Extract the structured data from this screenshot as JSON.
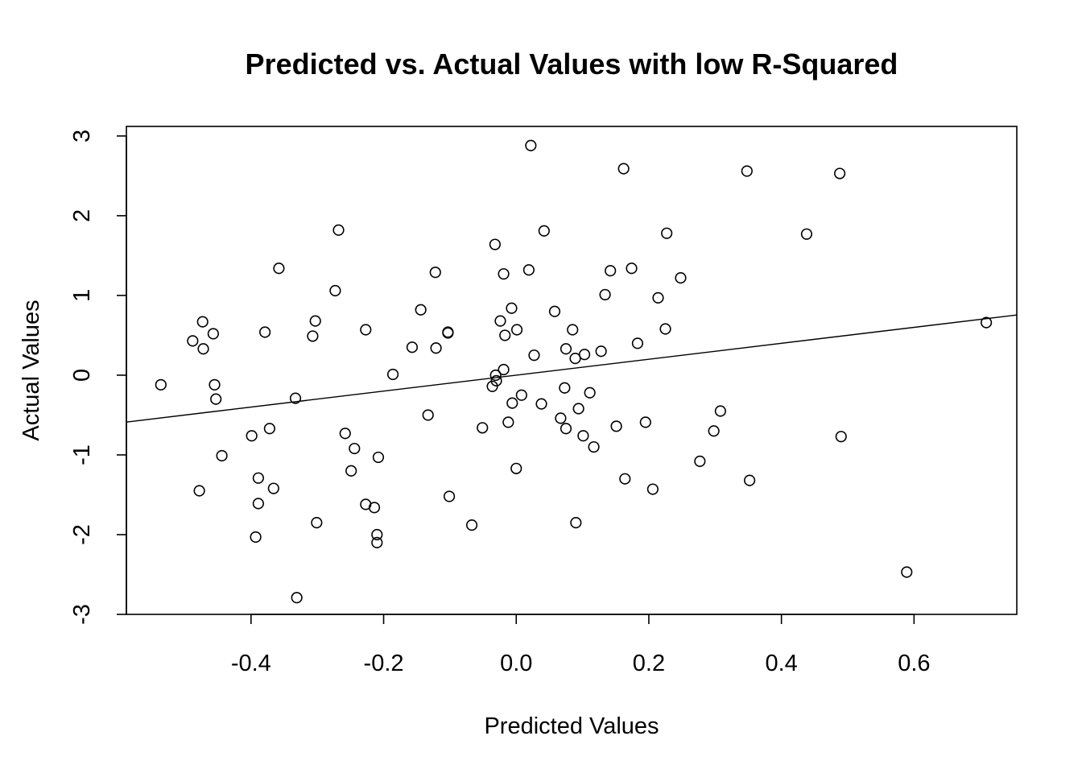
{
  "chart_data": {
    "type": "scatter",
    "title": "Predicted vs. Actual Values with low R-Squared",
    "xlabel": "Predicted Values",
    "ylabel": "Actual Values",
    "xlim": [
      -0.588,
      0.755
    ],
    "ylim": [
      -3.0,
      3.12
    ],
    "xticks": [
      -0.4,
      -0.2,
      0.0,
      0.2,
      0.4,
      0.6
    ],
    "xtick_labels": [
      "-0.4",
      "-0.2",
      "0.0",
      "0.2",
      "0.4",
      "0.6"
    ],
    "yticks": [
      -3,
      -2,
      -1,
      0,
      1,
      2,
      3
    ],
    "ytick_labels": [
      "-3",
      "-2",
      "-1",
      "0",
      "1",
      "2",
      "3"
    ],
    "grid": false,
    "fit_line": {
      "intercept": 0.0,
      "slope": 1.0
    },
    "points": [
      {
        "x": -0.536,
        "y": -0.12
      },
      {
        "x": -0.488,
        "y": 0.43
      },
      {
        "x": -0.473,
        "y": 0.67
      },
      {
        "x": -0.472,
        "y": 0.33
      },
      {
        "x": -0.478,
        "y": -1.45
      },
      {
        "x": -0.457,
        "y": 0.52
      },
      {
        "x": -0.455,
        "y": -0.12
      },
      {
        "x": -0.453,
        "y": -0.3
      },
      {
        "x": -0.444,
        "y": -1.01
      },
      {
        "x": -0.399,
        "y": -0.76
      },
      {
        "x": -0.393,
        "y": -2.03
      },
      {
        "x": -0.389,
        "y": -1.29
      },
      {
        "x": -0.389,
        "y": -1.61
      },
      {
        "x": -0.379,
        "y": 0.54
      },
      {
        "x": -0.372,
        "y": -0.67
      },
      {
        "x": -0.366,
        "y": -1.42
      },
      {
        "x": -0.358,
        "y": 1.34
      },
      {
        "x": -0.333,
        "y": -0.29
      },
      {
        "x": -0.331,
        "y": -2.79
      },
      {
        "x": -0.307,
        "y": 0.49
      },
      {
        "x": -0.303,
        "y": 0.68
      },
      {
        "x": -0.301,
        "y": -1.85
      },
      {
        "x": -0.273,
        "y": 1.06
      },
      {
        "x": -0.268,
        "y": 1.82
      },
      {
        "x": -0.258,
        "y": -0.73
      },
      {
        "x": -0.249,
        "y": -1.2
      },
      {
        "x": -0.244,
        "y": -0.92
      },
      {
        "x": -0.227,
        "y": 0.57
      },
      {
        "x": -0.227,
        "y": -1.62
      },
      {
        "x": -0.214,
        "y": -1.66
      },
      {
        "x": -0.21,
        "y": -2.0
      },
      {
        "x": -0.21,
        "y": -2.1
      },
      {
        "x": -0.208,
        "y": -1.03
      },
      {
        "x": -0.186,
        "y": 0.01
      },
      {
        "x": -0.157,
        "y": 0.35
      },
      {
        "x": -0.144,
        "y": 0.82
      },
      {
        "x": -0.133,
        "y": -0.5
      },
      {
        "x": -0.122,
        "y": 1.29
      },
      {
        "x": -0.121,
        "y": 0.34
      },
      {
        "x": -0.103,
        "y": 0.53
      },
      {
        "x": -0.103,
        "y": 0.54
      },
      {
        "x": -0.101,
        "y": -1.52
      },
      {
        "x": -0.067,
        "y": -1.88
      },
      {
        "x": -0.051,
        "y": -0.66
      },
      {
        "x": -0.036,
        "y": -0.14
      },
      {
        "x": -0.032,
        "y": 1.64
      },
      {
        "x": -0.031,
        "y": 0.0
      },
      {
        "x": -0.03,
        "y": -0.07
      },
      {
        "x": -0.024,
        "y": 0.68
      },
      {
        "x": -0.019,
        "y": 1.27
      },
      {
        "x": -0.017,
        "y": 0.5
      },
      {
        "x": -0.019,
        "y": 0.07
      },
      {
        "x": -0.012,
        "y": -0.59
      },
      {
        "x": -0.007,
        "y": 0.84
      },
      {
        "x": -0.006,
        "y": -0.35
      },
      {
        "x": 0.0,
        "y": -1.17
      },
      {
        "x": 0.001,
        "y": 0.57
      },
      {
        "x": 0.008,
        "y": -0.25
      },
      {
        "x": 0.019,
        "y": 1.32
      },
      {
        "x": 0.022,
        "y": 2.88
      },
      {
        "x": 0.027,
        "y": 0.25
      },
      {
        "x": 0.038,
        "y": -0.36
      },
      {
        "x": 0.042,
        "y": 1.81
      },
      {
        "x": 0.058,
        "y": 0.8
      },
      {
        "x": 0.067,
        "y": -0.54
      },
      {
        "x": 0.073,
        "y": -0.16
      },
      {
        "x": 0.075,
        "y": 0.33
      },
      {
        "x": 0.075,
        "y": -0.67
      },
      {
        "x": 0.085,
        "y": 0.57
      },
      {
        "x": 0.089,
        "y": 0.21
      },
      {
        "x": 0.09,
        "y": -1.85
      },
      {
        "x": 0.094,
        "y": -0.42
      },
      {
        "x": 0.101,
        "y": -0.76
      },
      {
        "x": 0.103,
        "y": 0.26
      },
      {
        "x": 0.111,
        "y": -0.22
      },
      {
        "x": 0.117,
        "y": -0.9
      },
      {
        "x": 0.128,
        "y": 0.3
      },
      {
        "x": 0.134,
        "y": 1.01
      },
      {
        "x": 0.142,
        "y": 1.31
      },
      {
        "x": 0.151,
        "y": -0.64
      },
      {
        "x": 0.162,
        "y": 2.59
      },
      {
        "x": 0.164,
        "y": -1.3
      },
      {
        "x": 0.174,
        "y": 1.34
      },
      {
        "x": 0.183,
        "y": 0.4
      },
      {
        "x": 0.195,
        "y": -0.59
      },
      {
        "x": 0.206,
        "y": -1.43
      },
      {
        "x": 0.214,
        "y": 0.97
      },
      {
        "x": 0.225,
        "y": 0.58
      },
      {
        "x": 0.227,
        "y": 1.78
      },
      {
        "x": 0.248,
        "y": 1.22
      },
      {
        "x": 0.277,
        "y": -1.08
      },
      {
        "x": 0.298,
        "y": -0.7
      },
      {
        "x": 0.308,
        "y": -0.45
      },
      {
        "x": 0.348,
        "y": 2.56
      },
      {
        "x": 0.352,
        "y": -1.32
      },
      {
        "x": 0.438,
        "y": 1.77
      },
      {
        "x": 0.488,
        "y": 2.53
      },
      {
        "x": 0.49,
        "y": -0.77
      },
      {
        "x": 0.589,
        "y": -2.47
      },
      {
        "x": 0.709,
        "y": 0.66
      }
    ]
  }
}
